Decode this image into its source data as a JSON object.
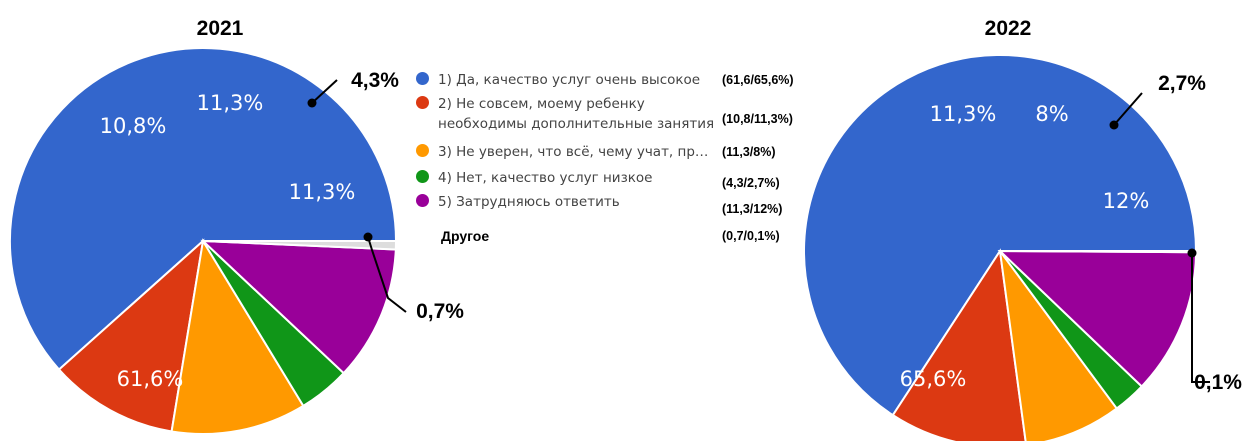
{
  "chart_data": [
    {
      "type": "pie",
      "title": "2021",
      "labels": [
        "1) Да, качество услуг очень высокое",
        "2) Не совсем, моему ребенку необходимы дополнительные занятия",
        "3) Не уверен, что всё, чему учат, пр…",
        "4) Нет, качество услуг низкое",
        "5) Затрудняюсь ответить",
        "Другое"
      ],
      "values": [
        61.6,
        10.8,
        11.3,
        4.3,
        11.3,
        0.7
      ],
      "slice_labels": [
        "61,6%",
        "10,8%",
        "11,3%",
        "4,3%",
        "11,3%",
        "0,7%"
      ],
      "colors": [
        "#3366CC",
        "#DC3912",
        "#FF9900",
        "#109618",
        "#990099",
        "#DDDDDD"
      ]
    },
    {
      "type": "pie",
      "title": "2022",
      "labels": [
        "1) Да, качество услуг очень высокое",
        "2) Не совсем, моему ребенку необходимы дополнительные занятия",
        "3) Не уверен, что всё, чему учат, пр…",
        "4) Нет, качество услуг низкое",
        "5) Затрудняюсь ответить",
        "Другое"
      ],
      "values": [
        65.6,
        11.3,
        8,
        2.7,
        12,
        0.1
      ],
      "slice_labels": [
        "65,6%",
        "11,3%",
        "8%",
        "2,7%",
        "12%",
        "0,1%"
      ],
      "colors": [
        "#3366CC",
        "#DC3912",
        "#FF9900",
        "#109618",
        "#990099",
        "#DDDDDD"
      ]
    }
  ],
  "legend": {
    "items": [
      {
        "text": "1) Да, качество услуг очень высокое",
        "value": "(61,6/65,6%)",
        "color": "#3366CC"
      },
      {
        "text": "2) Не совсем, моему ребенку",
        "text2": "необходимы дополнительные занятия",
        "value": "(10,8/11,3%)",
        "color": "#DC3912"
      },
      {
        "text": "3) Не уверен, что всё, чему учат, пр…",
        "value": "(11,3/8%)",
        "color": "#FF9900"
      },
      {
        "text": "4) Нет, качество услуг низкое",
        "value": "(4,3/2,7%)",
        "color": "#109618"
      },
      {
        "text": "5) Затрудняюсь ответить",
        "value": "(11,3/12%)",
        "color": "#990099"
      },
      {
        "text": "Другое",
        "value": "(0,7/0,1%)",
        "color": null
      }
    ]
  }
}
